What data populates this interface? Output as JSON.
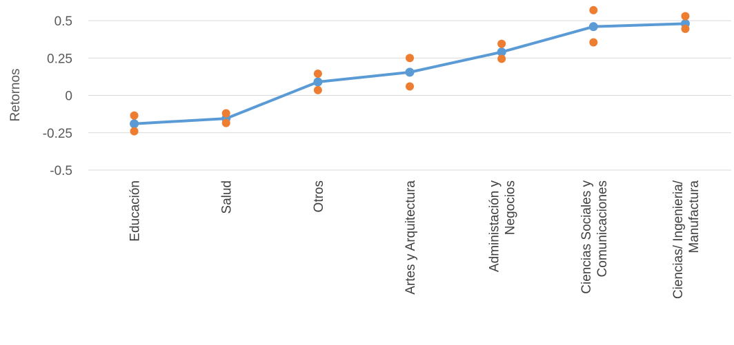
{
  "chart_data": {
    "type": "line",
    "ylabel": "Retornos",
    "xlabel": "",
    "ylim": [
      -0.5,
      0.5
    ],
    "yticks": [
      "0.5",
      "0.25",
      "0",
      "-0.25",
      "-0.5"
    ],
    "grid": true,
    "legend": "none",
    "categories": [
      [
        "Educación"
      ],
      [
        "Salud"
      ],
      [
        "Otros"
      ],
      [
        "Artes y Arquitectura"
      ],
      [
        "Administación y",
        "Negocios"
      ],
      [
        "Ciencias Sociales y",
        "Comunicaciones"
      ],
      [
        "Ciencias/ Ingenieria/",
        "Manufactura"
      ]
    ],
    "series": [
      {
        "role": "estimate",
        "style": "line-with-markers",
        "color": "#5B9BD5",
        "values": [
          -0.19,
          -0.155,
          0.09,
          0.155,
          0.29,
          0.46,
          0.48
        ]
      },
      {
        "role": "upper",
        "style": "markers",
        "color": "#ED7D31",
        "values": [
          -0.135,
          -0.12,
          0.145,
          0.25,
          0.345,
          0.57,
          0.53
        ]
      },
      {
        "role": "lower",
        "style": "markers",
        "color": "#ED7D31",
        "values": [
          -0.24,
          -0.185,
          0.035,
          0.06,
          0.245,
          0.355,
          0.445
        ]
      }
    ]
  }
}
